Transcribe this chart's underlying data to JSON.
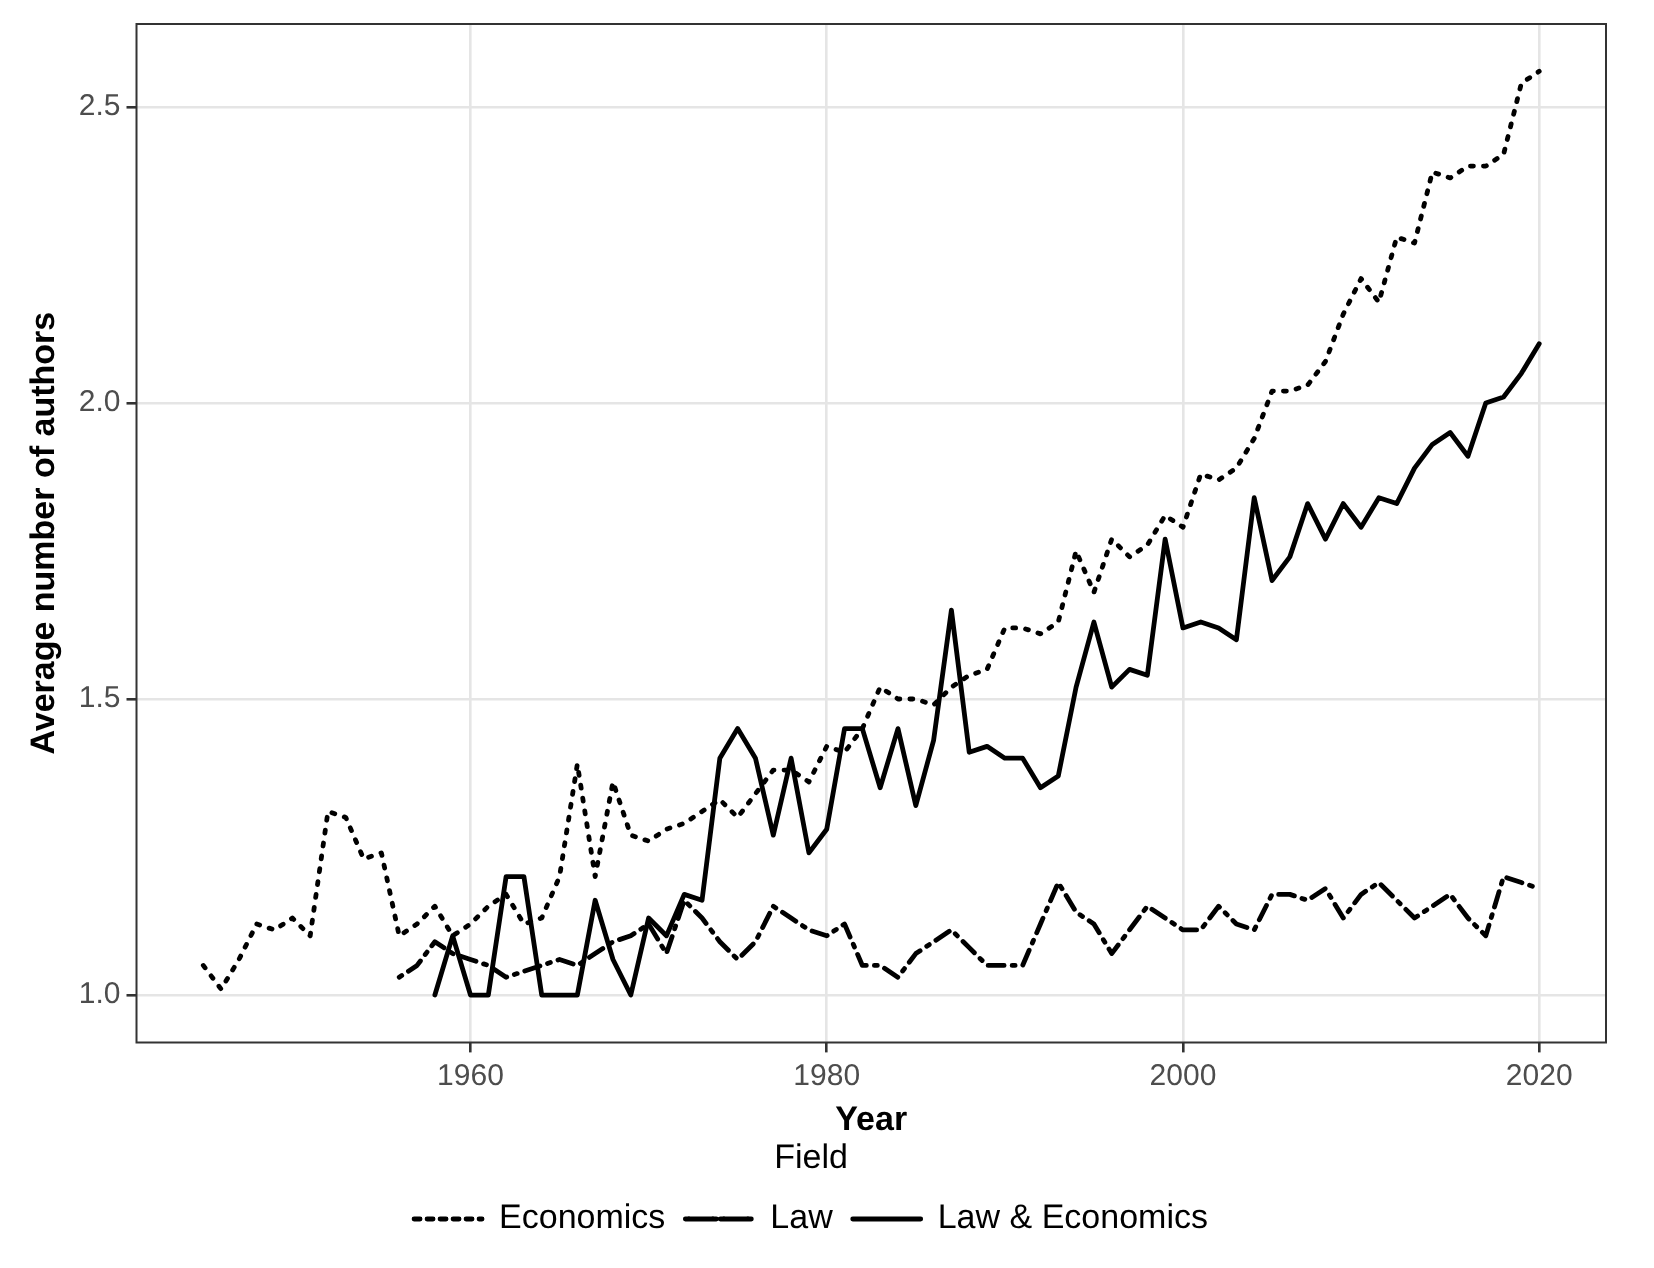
{
  "chart_data": {
    "type": "line",
    "xlabel": "Year",
    "ylabel": "Average number of authors",
    "legend_title": "Field",
    "legend": "bottom",
    "grid": true,
    "xlim": [
      1941.25,
      2023.75
    ],
    "xticks": [
      1960,
      1980,
      2000,
      2020
    ],
    "ylim": [
      0.92,
      2.64
    ],
    "yticks": [
      {
        "value": 1,
        "label": "1.0"
      },
      {
        "value": 1.5,
        "label": "1.5"
      },
      {
        "value": 2,
        "label": "2.0"
      },
      {
        "value": 2.5,
        "label": "2.5"
      }
    ],
    "series": [
      {
        "name": "Economics",
        "color": "#000000",
        "line_style": "dotted",
        "x": [
          1945,
          1946,
          1947,
          1948,
          1949,
          1950,
          1951,
          1952,
          1953,
          1954,
          1955,
          1956,
          1957,
          1958,
          1959,
          1960,
          1961,
          1962,
          1963,
          1964,
          1965,
          1966,
          1967,
          1968,
          1969,
          1970,
          1971,
          1972,
          1973,
          1974,
          1975,
          1976,
          1977,
          1978,
          1979,
          1980,
          1981,
          1982,
          1983,
          1984,
          1985,
          1986,
          1987,
          1988,
          1989,
          1990,
          1991,
          1992,
          1993,
          1994,
          1995,
          1996,
          1997,
          1998,
          1999,
          2000,
          2001,
          2002,
          2003,
          2004,
          2005,
          2006,
          2007,
          2008,
          2009,
          2010,
          2011,
          2012,
          2013,
          2014,
          2015,
          2016,
          2017,
          2018,
          2019,
          2020
        ],
        "values": [
          1.05,
          1.01,
          1.06,
          1.12,
          1.11,
          1.13,
          1.1,
          1.31,
          1.3,
          1.23,
          1.24,
          1.1,
          1.12,
          1.15,
          1.1,
          1.12,
          1.15,
          1.17,
          1.12,
          1.13,
          1.2,
          1.39,
          1.2,
          1.36,
          1.27,
          1.26,
          1.28,
          1.29,
          1.31,
          1.33,
          1.3,
          1.34,
          1.38,
          1.38,
          1.36,
          1.42,
          1.41,
          1.45,
          1.52,
          1.5,
          1.5,
          1.49,
          1.52,
          1.54,
          1.55,
          1.62,
          1.62,
          1.61,
          1.63,
          1.75,
          1.68,
          1.77,
          1.74,
          1.76,
          1.81,
          1.79,
          1.88,
          1.87,
          1.89,
          1.94,
          2.02,
          2.02,
          2.03,
          2.07,
          2.15,
          2.21,
          2.17,
          2.28,
          2.27,
          2.39,
          2.38,
          2.4,
          2.4,
          2.42,
          2.54,
          2.56
        ]
      },
      {
        "name": "Law",
        "color": "#000000",
        "line_style": "dashdot",
        "x": [
          1956,
          1957,
          1958,
          1959,
          1960,
          1961,
          1962,
          1963,
          1964,
          1965,
          1966,
          1967,
          1968,
          1969,
          1970,
          1971,
          1972,
          1973,
          1974,
          1975,
          1976,
          1977,
          1978,
          1979,
          1980,
          1981,
          1982,
          1983,
          1984,
          1985,
          1986,
          1987,
          1988,
          1989,
          1990,
          1991,
          1992,
          1993,
          1994,
          1995,
          1996,
          1997,
          1998,
          1999,
          2000,
          2001,
          2002,
          2003,
          2004,
          2005,
          2006,
          2007,
          2008,
          2009,
          2010,
          2011,
          2012,
          2013,
          2014,
          2015,
          2016,
          2017,
          2018,
          2019,
          2020
        ],
        "values": [
          1.03,
          1.05,
          1.09,
          1.07,
          1.06,
          1.05,
          1.03,
          1.04,
          1.05,
          1.06,
          1.05,
          1.07,
          1.09,
          1.1,
          1.12,
          1.07,
          1.16,
          1.13,
          1.09,
          1.06,
          1.09,
          1.15,
          1.13,
          1.11,
          1.1,
          1.12,
          1.05,
          1.05,
          1.03,
          1.07,
          1.09,
          1.11,
          1.08,
          1.05,
          1.05,
          1.05,
          1.12,
          1.19,
          1.14,
          1.12,
          1.07,
          1.11,
          1.15,
          1.13,
          1.11,
          1.11,
          1.15,
          1.12,
          1.11,
          1.17,
          1.17,
          1.16,
          1.18,
          1.13,
          1.17,
          1.19,
          1.16,
          1.13,
          1.15,
          1.17,
          1.13,
          1.1,
          1.2,
          1.19,
          1.18
        ]
      },
      {
        "name": "Law & Economics",
        "color": "#000000",
        "line_style": "solid",
        "x": [
          1958,
          1959,
          1960,
          1961,
          1962,
          1963,
          1964,
          1965,
          1966,
          1967,
          1968,
          1969,
          1970,
          1971,
          1972,
          1973,
          1974,
          1975,
          1976,
          1977,
          1978,
          1979,
          1980,
          1981,
          1982,
          1983,
          1984,
          1985,
          1986,
          1987,
          1988,
          1989,
          1990,
          1991,
          1992,
          1993,
          1994,
          1995,
          1996,
          1997,
          1998,
          1999,
          2000,
          2001,
          2002,
          2003,
          2004,
          2005,
          2006,
          2007,
          2008,
          2009,
          2010,
          2011,
          2012,
          2013,
          2014,
          2015,
          2016,
          2017,
          2018,
          2019,
          2020
        ],
        "values": [
          1.0,
          1.1,
          1.0,
          1.0,
          1.2,
          1.2,
          1.0,
          1.0,
          1.0,
          1.16,
          1.06,
          1.0,
          1.13,
          1.1,
          1.17,
          1.16,
          1.4,
          1.45,
          1.4,
          1.27,
          1.4,
          1.24,
          1.28,
          1.45,
          1.45,
          1.35,
          1.45,
          1.32,
          1.43,
          1.65,
          1.41,
          1.42,
          1.4,
          1.4,
          1.35,
          1.37,
          1.52,
          1.63,
          1.52,
          1.55,
          1.54,
          1.77,
          1.62,
          1.63,
          1.62,
          1.6,
          1.84,
          1.7,
          1.74,
          1.83,
          1.77,
          1.83,
          1.79,
          1.84,
          1.83,
          1.89,
          1.93,
          1.95,
          1.91,
          2.0,
          2.01,
          2.05,
          2.1
        ]
      }
    ]
  }
}
